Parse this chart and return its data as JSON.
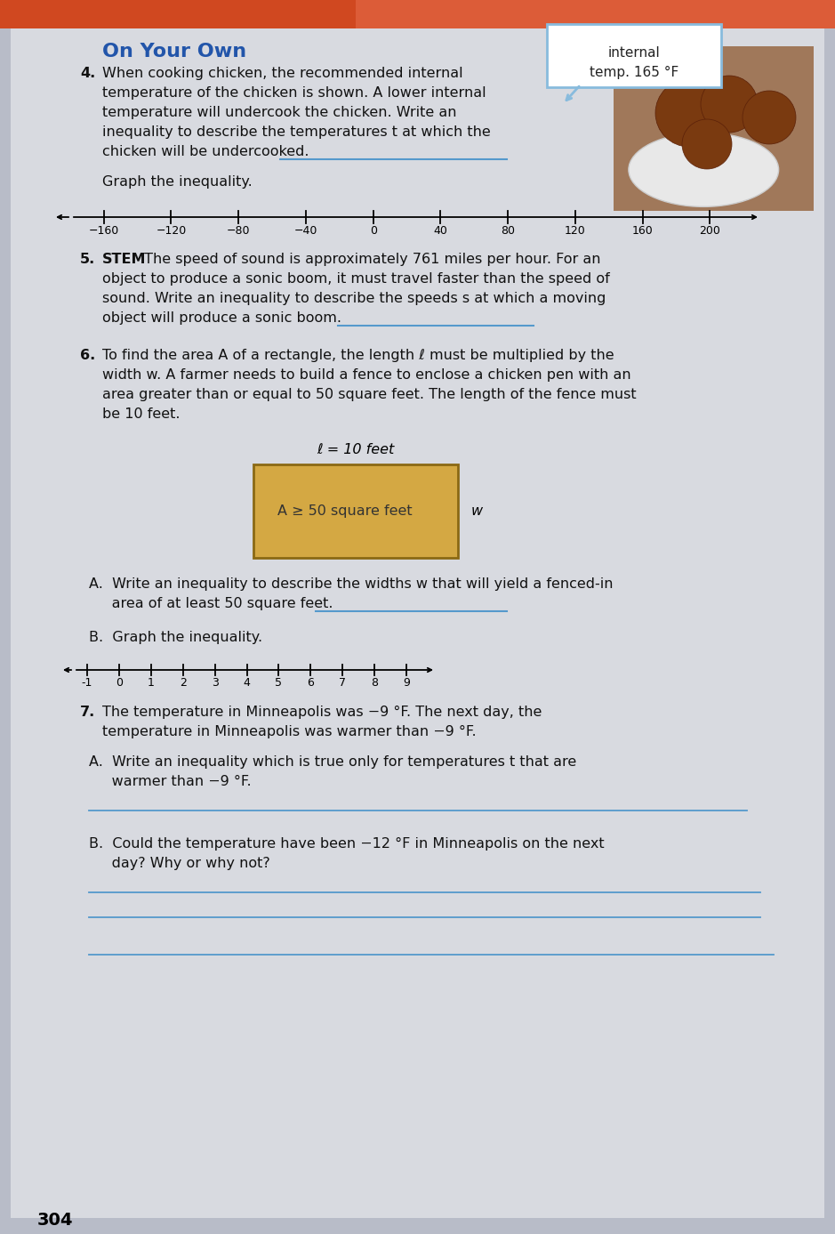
{
  "bg_outer": "#b8bcc8",
  "page_bg": "#d8dae0",
  "title": "On Your Own",
  "title_color": "#2255aa",
  "title_fontsize": 16,
  "body_fontsize": 11.5,
  "number_color": "#000000",
  "text_color": "#111111",
  "blue_line_color": "#5599cc",
  "q4_number": "4.",
  "q4_text1": "When cooking chicken, the recommended internal",
  "q4_text2": "temperature of the chicken is shown. A lower internal",
  "q4_text3": "temperature will undercook the chicken. Write an",
  "q4_text4": "inequality to describe the temperatures t at which the",
  "q4_text5": "chicken will be undercooked.",
  "q4_graph_label": "Graph the inequality.",
  "number_line1_ticks": [
    -160,
    -120,
    -80,
    -40,
    0,
    40,
    80,
    120,
    160,
    200
  ],
  "q5_number": "5.",
  "q5_stem": "STEM",
  "q5_text1": " The speed of sound is approximately 761 miles per hour. For an",
  "q5_text2": "object to produce a sonic boom, it must travel faster than the speed of",
  "q5_text3": "sound. Write an inequality to describe the speeds s at which a moving",
  "q5_text4": "object will produce a sonic boom.",
  "q6_number": "6.",
  "q6_text1": "To find the area A of a rectangle, the length ℓ must be multiplied by the",
  "q6_text2": "width w. A farmer needs to build a fence to enclose a chicken pen with an",
  "q6_text3": "area greater than or equal to 50 square feet. The length of the fence must",
  "q6_text4": "be 10 feet.",
  "q6_ell_label": "ℓ = 10 feet",
  "q6_rect_text": "A ≥ 50 square feet",
  "q6_rect_color": "#d4a843",
  "q6_rect_border": "#8B6914",
  "q6A_text1": "A.  Write an inequality to describe the widths w that will yield a fenced-in",
  "q6A_text2": "     area of at least 50 square feet.",
  "q6B_label": "B.  Graph the inequality.",
  "number_line2_ticks": [
    -1,
    0,
    1,
    2,
    3,
    4,
    5,
    6,
    7,
    8,
    9
  ],
  "q7_number": "7.",
  "q7_text1": "The temperature in Minneapolis was −9 °F. The next day, the",
  "q7_text2": "temperature in Minneapolis was warmer than −9 °F.",
  "q7A_text1": "A.  Write an inequality which is true only for temperatures t that are",
  "q7A_text2": "     warmer than −9 °F.",
  "q7B_text1": "B.  Could the temperature have been −12 °F in Minneapolis on the next",
  "q7B_text2": "     day? Why or why not?",
  "page_number": "304",
  "callout_text1": "internal",
  "callout_text2": "temp. 165 °F",
  "callout_bg": "#ffffff",
  "callout_border": "#88bbdd",
  "header_color": "#d04820",
  "header_color2": "#e87050"
}
